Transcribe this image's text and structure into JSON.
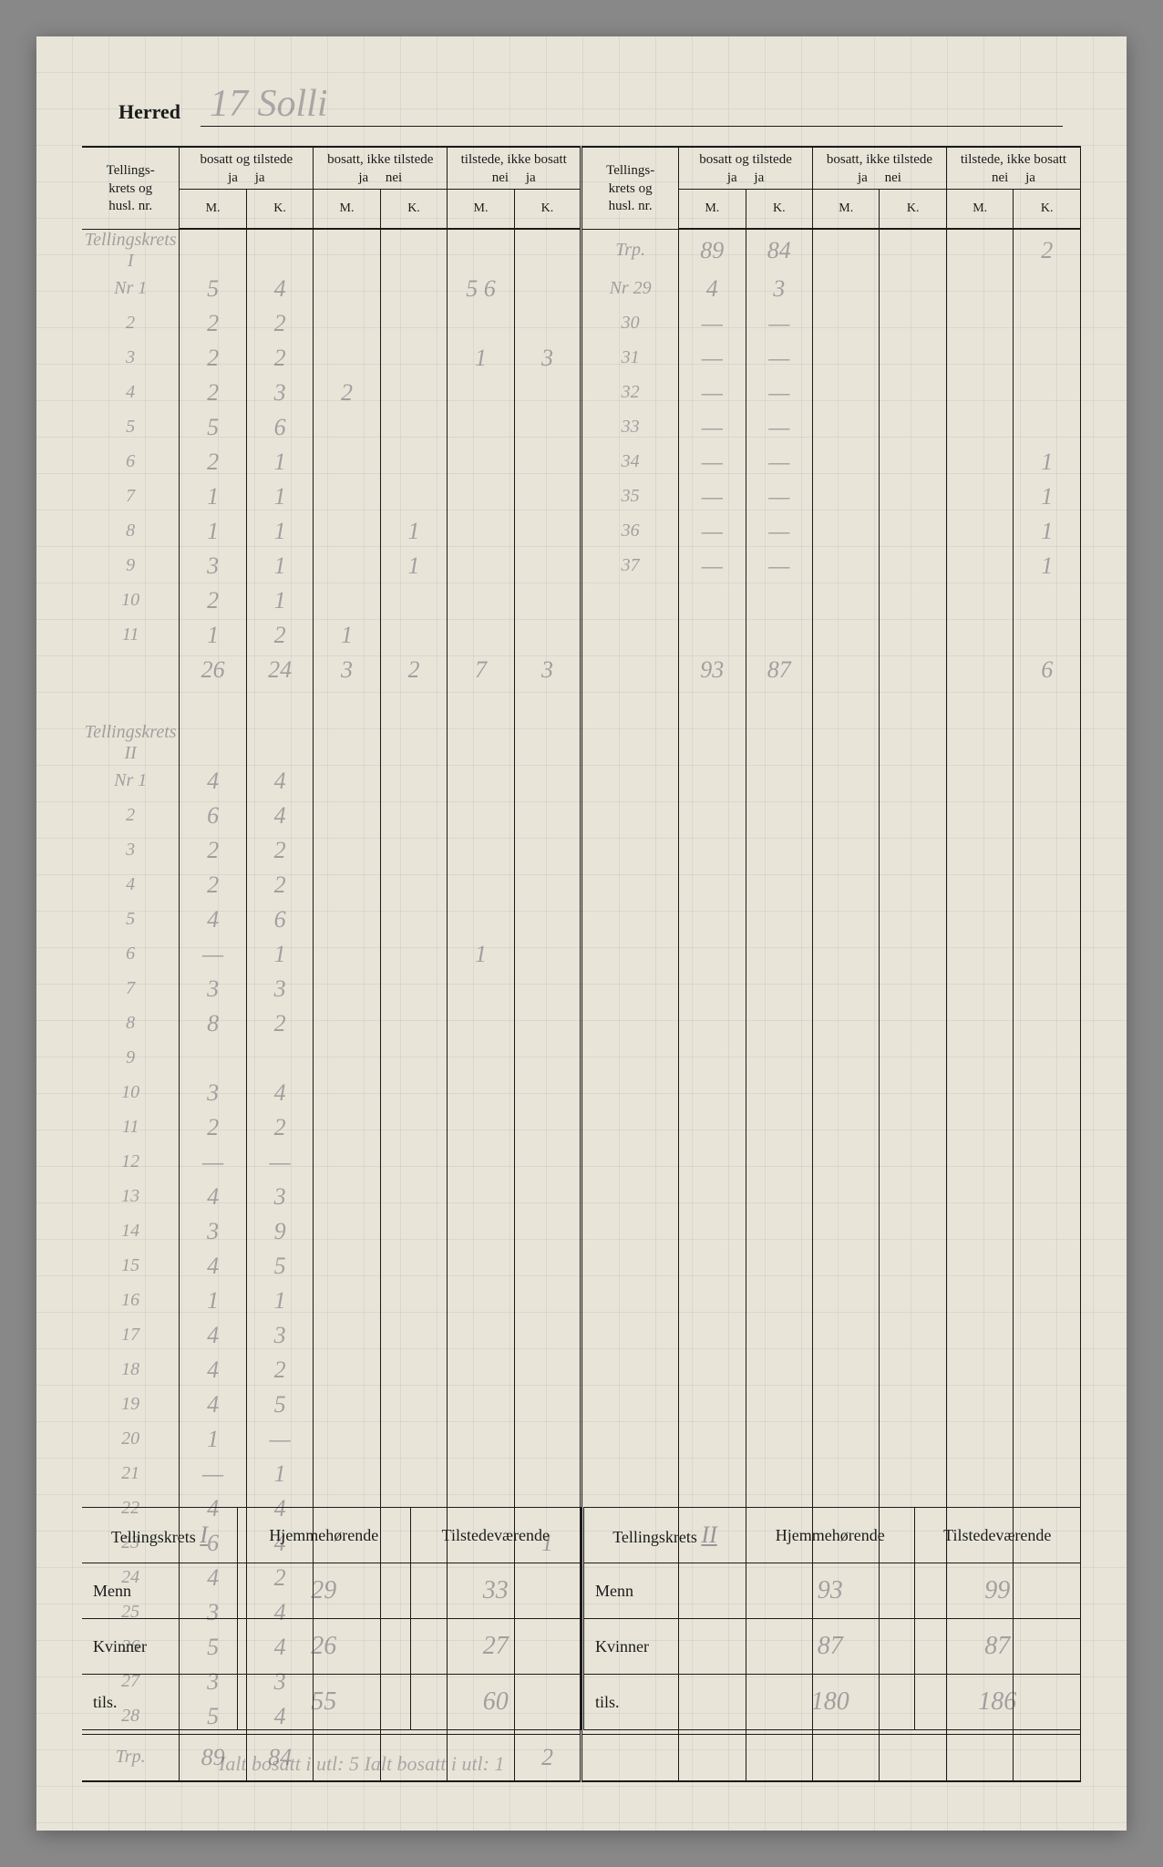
{
  "header": {
    "herred_label": "Herred",
    "herred_value": "17 Solli"
  },
  "columns": {
    "rowlabel": [
      "Tellings-",
      "krets og",
      "husl. nr."
    ],
    "group1": {
      "title": "bosatt og tilstede",
      "sub": [
        "ja",
        "ja"
      ]
    },
    "group2": {
      "title": "bosatt, ikke tilstede",
      "sub": [
        "ja",
        "nei"
      ]
    },
    "group3": {
      "title": "tilstede, ikke bosatt",
      "sub": [
        "nei",
        "ja"
      ]
    },
    "mk": [
      "M.",
      "K."
    ]
  },
  "section1": {
    "label": "Tellingskrets I",
    "rows": [
      {
        "nr": "Nr 1",
        "m1": "5",
        "k1": "4",
        "m2": "",
        "k2": "",
        "m3": "5 6",
        "k3": ""
      },
      {
        "nr": "2",
        "m1": "2",
        "k1": "2",
        "m2": "",
        "k2": "",
        "m3": "",
        "k3": ""
      },
      {
        "nr": "3",
        "m1": "2",
        "k1": "2",
        "m2": "",
        "k2": "",
        "m3": "1",
        "k3": "3"
      },
      {
        "nr": "4",
        "m1": "2",
        "k1": "3",
        "m2": "2",
        "k2": "",
        "m3": "",
        "k3": ""
      },
      {
        "nr": "5",
        "m1": "5",
        "k1": "6",
        "m2": "",
        "k2": "",
        "m3": "",
        "k3": ""
      },
      {
        "nr": "6",
        "m1": "2",
        "k1": "1",
        "m2": "",
        "k2": "",
        "m3": "",
        "k3": ""
      },
      {
        "nr": "7",
        "m1": "1",
        "k1": "1",
        "m2": "",
        "k2": "",
        "m3": "",
        "k3": ""
      },
      {
        "nr": "8",
        "m1": "1",
        "k1": "1",
        "m2": "",
        "k2": "1",
        "m3": "",
        "k3": ""
      },
      {
        "nr": "9",
        "m1": "3",
        "k1": "1",
        "m2": "",
        "k2": "1",
        "m3": "",
        "k3": ""
      },
      {
        "nr": "10",
        "m1": "2",
        "k1": "1",
        "m2": "",
        "k2": "",
        "m3": "",
        "k3": ""
      },
      {
        "nr": "11",
        "m1": "1",
        "k1": "2",
        "m2": "1",
        "k2": "",
        "m3": "",
        "k3": ""
      }
    ],
    "subtotal": {
      "m1": "26",
      "k1": "24",
      "m2": "3",
      "k2": "2",
      "m3": "7",
      "k3": "3"
    }
  },
  "section1b": {
    "label_trp": "Trp.",
    "carry": {
      "m1": "89",
      "k1": "84",
      "m3": "",
      "k3": "2"
    },
    "rows": [
      {
        "nr": "Nr 29",
        "m1": "4",
        "k1": "3",
        "k3": ""
      },
      {
        "nr": "30",
        "m1": "—",
        "k1": "—",
        "k3": ""
      },
      {
        "nr": "31",
        "m1": "—",
        "k1": "—",
        "k3": ""
      },
      {
        "nr": "32",
        "m1": "—",
        "k1": "—",
        "k3": ""
      },
      {
        "nr": "33",
        "m1": "—",
        "k1": "—",
        "k3": ""
      },
      {
        "nr": "34",
        "m1": "—",
        "k1": "—",
        "k3": "1"
      },
      {
        "nr": "35",
        "m1": "—",
        "k1": "—",
        "k3": "1"
      },
      {
        "nr": "36",
        "m1": "—",
        "k1": "—",
        "k3": "1"
      },
      {
        "nr": "37",
        "m1": "—",
        "k1": "—",
        "k3": "1"
      }
    ],
    "total": {
      "m1": "93",
      "k1": "87",
      "k3": "6"
    }
  },
  "section2": {
    "label": "Tellingskrets II",
    "rows": [
      {
        "nr": "Nr 1",
        "m1": "4",
        "k1": "4"
      },
      {
        "nr": "2",
        "m1": "6",
        "k1": "4"
      },
      {
        "nr": "3",
        "m1": "2",
        "k1": "2"
      },
      {
        "nr": "4",
        "m1": "2",
        "k1": "2"
      },
      {
        "nr": "5",
        "m1": "4",
        "k1": "6"
      },
      {
        "nr": "6",
        "m1": "—",
        "k1": "1",
        "m3": "1"
      },
      {
        "nr": "7",
        "m1": "3",
        "k1": "3"
      },
      {
        "nr": "8",
        "m1": "8",
        "k1": "2"
      },
      {
        "nr": "9",
        "m1": "",
        "k1": ""
      },
      {
        "nr": "10",
        "m1": "3",
        "k1": "4"
      },
      {
        "nr": "11",
        "m1": "2",
        "k1": "2"
      },
      {
        "nr": "12",
        "m1": "—",
        "k1": "—"
      },
      {
        "nr": "13",
        "m1": "4",
        "k1": "3"
      },
      {
        "nr": "14",
        "m1": "3",
        "k1": "9"
      },
      {
        "nr": "15",
        "m1": "4",
        "k1": "5"
      },
      {
        "nr": "16",
        "m1": "1",
        "k1": "1"
      },
      {
        "nr": "17",
        "m1": "4",
        "k1": "3"
      },
      {
        "nr": "18",
        "m1": "4",
        "k1": "2"
      },
      {
        "nr": "19",
        "m1": "4",
        "k1": "5"
      },
      {
        "nr": "20",
        "m1": "1",
        "k1": "—"
      },
      {
        "nr": "21",
        "m1": "—",
        "k1": "1"
      },
      {
        "nr": "22",
        "m1": "4",
        "k1": "4"
      },
      {
        "nr": "23",
        "m1": "6",
        "k1": "4",
        "k3": "1"
      },
      {
        "nr": "24",
        "m1": "4",
        "k1": "2"
      },
      {
        "nr": "25",
        "m1": "3",
        "k1": "4"
      },
      {
        "nr": "26",
        "m1": "5",
        "k1": "4"
      },
      {
        "nr": "27",
        "m1": "3",
        "k1": "3"
      },
      {
        "nr": "28",
        "m1": "5",
        "k1": "4"
      }
    ],
    "carry_label": "Trp.",
    "carry": {
      "m1": "89",
      "k1": "84",
      "m3": "",
      "k3": "2"
    }
  },
  "summary": {
    "left": {
      "title": "Tellingskrets",
      "roman": "I",
      "cols": [
        "Hjemmehørende",
        "Tilstedeværende"
      ],
      "rows": [
        {
          "label": "Menn",
          "h": "29",
          "t": "33"
        },
        {
          "label": "Kvinner",
          "h": "26",
          "t": "27"
        },
        {
          "label": "tils.",
          "h": "55",
          "t": "60"
        }
      ]
    },
    "right": {
      "title": "Tellingskrets",
      "roman": "II",
      "cols": [
        "Hjemmehørende",
        "Tilstedeværende"
      ],
      "rows": [
        {
          "label": "Menn",
          "h": "93",
          "t": "99"
        },
        {
          "label": "Kvinner",
          "h": "87",
          "t": "87"
        },
        {
          "label": "tils.",
          "h": "180",
          "t": "186"
        }
      ]
    }
  },
  "footnote": "Ialt bosatt i utl: 5   Ialt bosatt i utl: 1"
}
